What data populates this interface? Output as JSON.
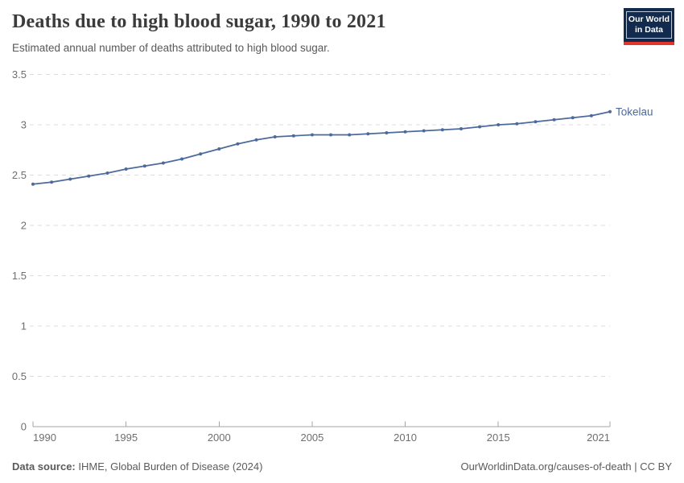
{
  "header": {
    "title": "Deaths due to high blood sugar, 1990 to 2021",
    "subtitle": "Estimated annual number of deaths attributed to high blood sugar.",
    "logo": {
      "line1": "Our World",
      "line2": "in Data",
      "bg_color": "#122a4e",
      "bar_color": "#e0362c"
    }
  },
  "footer": {
    "source_label": "Data source:",
    "source_text": " IHME, Global Burden of Disease (2024)",
    "credit": "OurWorldinData.org/causes-of-death | CC BY"
  },
  "chart_data": {
    "type": "line",
    "title": "Deaths due to high blood sugar, 1990 to 2021",
    "subtitle": "Estimated annual number of deaths attributed to high blood sugar.",
    "x": [
      1990,
      1991,
      1992,
      1993,
      1994,
      1995,
      1996,
      1997,
      1998,
      1999,
      2000,
      2001,
      2002,
      2003,
      2004,
      2005,
      2006,
      2007,
      2008,
      2009,
      2010,
      2011,
      2012,
      2013,
      2014,
      2015,
      2016,
      2017,
      2018,
      2019,
      2020,
      2021
    ],
    "series": [
      {
        "name": "Tokelau",
        "color": "#4C6A9C",
        "values": [
          2.41,
          2.43,
          2.46,
          2.49,
          2.52,
          2.56,
          2.59,
          2.62,
          2.66,
          2.71,
          2.76,
          2.81,
          2.85,
          2.88,
          2.89,
          2.9,
          2.9,
          2.9,
          2.91,
          2.92,
          2.93,
          2.94,
          2.95,
          2.96,
          2.98,
          3.0,
          3.01,
          3.03,
          3.05,
          3.07,
          3.09,
          3.13
        ]
      }
    ],
    "end_label": "Tokelau",
    "xlabel": "",
    "ylabel": "",
    "ylim": [
      0,
      3.5
    ],
    "yticks": [
      0,
      0.5,
      1,
      1.5,
      2,
      2.5,
      3,
      3.5
    ],
    "xticks": [
      1990,
      1995,
      2000,
      2005,
      2010,
      2015,
      2021
    ],
    "grid": "horizontal-dashed",
    "legend_position": "end-of-line",
    "colors": {
      "line": "#4C6A9C",
      "gridline": "#dcdcdc",
      "axis": "#a5a5a5",
      "tick_text": "#6e6e6e"
    }
  }
}
